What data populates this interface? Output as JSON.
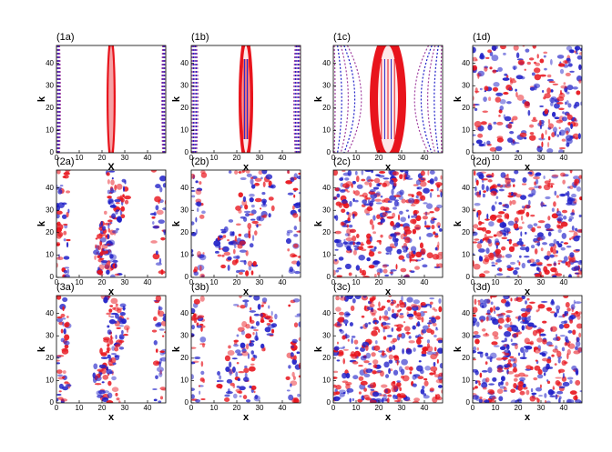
{
  "chart_data": [
    {
      "type": "heatmap",
      "label": "(1a)",
      "xlabel": "X",
      "ylabel": "k",
      "xlim": [
        0,
        48
      ],
      "ylim": [
        0,
        48
      ],
      "xticks": [
        0,
        10,
        20,
        30,
        40
      ],
      "yticks": [
        0,
        10,
        20,
        30,
        40
      ]
    },
    {
      "type": "heatmap",
      "label": "(1b)",
      "xlabel": "x",
      "ylabel": "k",
      "xlim": [
        0,
        48
      ],
      "ylim": [
        0,
        48
      ],
      "xticks": [
        0,
        10,
        20,
        30,
        40
      ],
      "yticks": [
        0,
        10,
        20,
        30,
        40
      ]
    },
    {
      "type": "heatmap",
      "label": "(1c)",
      "xlabel": "x",
      "ylabel": "k",
      "xlim": [
        0,
        48
      ],
      "ylim": [
        0,
        48
      ],
      "xticks": [
        0,
        10,
        20,
        30,
        40
      ],
      "yticks": [
        0,
        10,
        20,
        30,
        40
      ]
    },
    {
      "type": "heatmap",
      "label": "(1d)",
      "xlabel": "x",
      "ylabel": "k",
      "xlim": [
        0,
        48
      ],
      "ylim": [
        0,
        48
      ],
      "xticks": [
        0,
        10,
        20,
        30,
        40
      ],
      "yticks": [
        0,
        10,
        20,
        30,
        40
      ]
    },
    {
      "type": "heatmap",
      "label": "(2a)",
      "xlabel": "x",
      "ylabel": "k",
      "xlim": [
        0,
        48
      ],
      "ylim": [
        0,
        48
      ],
      "xticks": [
        0,
        10,
        20,
        30,
        40
      ],
      "yticks": [
        0,
        10,
        20,
        30,
        40
      ]
    },
    {
      "type": "heatmap",
      "label": "(2b)",
      "xlabel": "x",
      "ylabel": "k",
      "xlim": [
        0,
        48
      ],
      "ylim": [
        0,
        48
      ],
      "xticks": [
        0,
        10,
        20,
        30,
        40
      ],
      "yticks": [
        0,
        10,
        20,
        30,
        40
      ]
    },
    {
      "type": "heatmap",
      "label": "(2c)",
      "xlabel": "x",
      "ylabel": "k",
      "xlim": [
        0,
        48
      ],
      "ylim": [
        0,
        48
      ],
      "xticks": [
        0,
        10,
        20,
        30,
        40
      ],
      "yticks": [
        0,
        10,
        20,
        30,
        40
      ]
    },
    {
      "type": "heatmap",
      "label": "(2d)",
      "xlabel": "x",
      "ylabel": "k",
      "xlim": [
        0,
        48
      ],
      "ylim": [
        0,
        48
      ],
      "xticks": [
        0,
        10,
        20,
        30,
        40
      ],
      "yticks": [
        0,
        10,
        20,
        30,
        40
      ]
    },
    {
      "type": "heatmap",
      "label": "(3a)",
      "xlabel": "x",
      "ylabel": "k",
      "xlim": [
        0,
        48
      ],
      "ylim": [
        0,
        48
      ],
      "xticks": [
        0,
        10,
        20,
        30,
        40
      ],
      "yticks": [
        0,
        10,
        20,
        30,
        40
      ]
    },
    {
      "type": "heatmap",
      "label": "(3b)",
      "xlabel": "x",
      "ylabel": "k",
      "xlim": [
        0,
        48
      ],
      "ylim": [
        0,
        48
      ],
      "xticks": [
        0,
        10,
        20,
        30,
        40
      ],
      "yticks": [
        0,
        10,
        20,
        30,
        40
      ]
    },
    {
      "type": "heatmap",
      "label": "(3c)",
      "xlabel": "x",
      "ylabel": "k",
      "xlim": [
        0,
        48
      ],
      "ylim": [
        0,
        48
      ],
      "xticks": [
        0,
        10,
        20,
        30,
        40
      ],
      "yticks": [
        0,
        10,
        20,
        30,
        40
      ]
    },
    {
      "type": "heatmap",
      "label": "(3d)",
      "xlabel": "x",
      "ylabel": "k",
      "xlim": [
        0,
        48
      ],
      "ylim": [
        0,
        48
      ],
      "xticks": [
        0,
        10,
        20,
        30,
        40
      ],
      "yticks": [
        0,
        10,
        20,
        30,
        40
      ]
    }
  ]
}
